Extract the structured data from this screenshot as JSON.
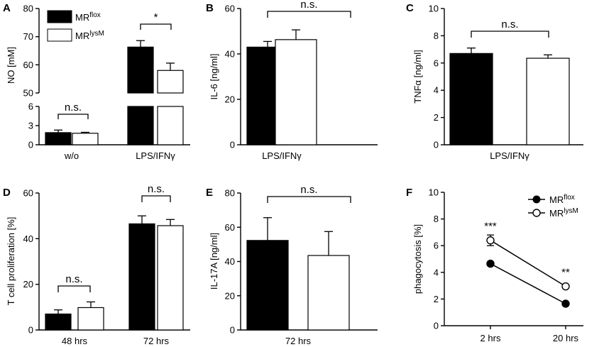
{
  "legend": {
    "flox_base": "MR",
    "flox_sup": "flox",
    "lysm_base": "MR",
    "lysm_sup": "lysM"
  },
  "colors": {
    "flox": "#000000",
    "lysm": "#ffffff"
  },
  "chart_data": [
    {
      "panel": "A",
      "type": "bar",
      "broken_axis": true,
      "ylabel": "NO [mM]",
      "ylim_lower": [
        0,
        6
      ],
      "ylim_upper": [
        50,
        80
      ],
      "yticks_lower": [
        0,
        3,
        6
      ],
      "yticks_upper": [
        50,
        60,
        70,
        80
      ],
      "categories": [
        "w/o",
        "LPS/IFNγ"
      ],
      "series": [
        {
          "name": "MRflox",
          "values": [
            1.9,
            66.3
          ],
          "errors": [
            0.4,
            2.3
          ]
        },
        {
          "name": "MRlysM",
          "values": [
            1.8,
            58.0
          ],
          "errors": [
            0.15,
            2.6
          ]
        }
      ],
      "significance": [
        "n.s.",
        "*"
      ],
      "legend_position": "top-left"
    },
    {
      "panel": "B",
      "type": "bar",
      "ylabel": "IL-6 [ng/ml]",
      "ylim": [
        0,
        60
      ],
      "yticks": [
        0,
        20,
        40,
        60
      ],
      "categories": [
        "LPS/IFNγ"
      ],
      "series": [
        {
          "name": "MRflox",
          "values": [
            43.0
          ],
          "errors": [
            2.5
          ]
        },
        {
          "name": "MRlysM",
          "values": [
            46.3
          ],
          "errors": [
            4.3
          ]
        }
      ],
      "significance": [
        "n.s."
      ]
    },
    {
      "panel": "C",
      "type": "bar",
      "ylabel": "TNFα [ng/ml]",
      "ylim": [
        0,
        10
      ],
      "yticks": [
        0,
        2,
        4,
        6,
        8,
        10
      ],
      "categories": [
        "LPS/IFNγ"
      ],
      "series": [
        {
          "name": "MRflox",
          "values": [
            6.7
          ],
          "errors": [
            0.4
          ]
        },
        {
          "name": "MRlysM",
          "values": [
            6.35
          ],
          "errors": [
            0.25
          ]
        }
      ],
      "significance": [
        "n.s."
      ]
    },
    {
      "panel": "D",
      "type": "bar",
      "ylabel": "T cell proliferation [%]",
      "ylim": [
        0,
        60
      ],
      "yticks": [
        0,
        20,
        40,
        60
      ],
      "categories": [
        "48 hrs",
        "72 hrs"
      ],
      "series": [
        {
          "name": "MRflox",
          "values": [
            7.0,
            46.5
          ],
          "errors": [
            1.8,
            3.5
          ]
        },
        {
          "name": "MRlysM",
          "values": [
            9.8,
            45.7
          ],
          "errors": [
            2.5,
            2.7
          ]
        }
      ],
      "significance": [
        "n.s.",
        "n.s."
      ]
    },
    {
      "panel": "E",
      "type": "bar",
      "ylabel": "IL-17A [ng/ml]",
      "ylim": [
        0,
        80
      ],
      "yticks": [
        0,
        20,
        40,
        60,
        80
      ],
      "categories": [
        "72 hrs"
      ],
      "series": [
        {
          "name": "MRflox",
          "values": [
            52.3
          ],
          "errors": [
            13.3
          ]
        },
        {
          "name": "MRlysM",
          "values": [
            43.5
          ],
          "errors": [
            14.0
          ]
        }
      ],
      "significance": [
        "n.s."
      ]
    },
    {
      "panel": "F",
      "type": "line",
      "ylabel": "phagocytosis [%]",
      "ylim": [
        0,
        10
      ],
      "yticks": [
        0,
        2,
        4,
        6,
        8,
        10
      ],
      "categories": [
        "2 hrs",
        "20 hrs"
      ],
      "series": [
        {
          "name": "MRflox",
          "values": [
            4.65,
            1.65
          ],
          "errors": [
            0.1,
            0.1
          ],
          "marker": "filled-circle"
        },
        {
          "name": "MRlysM",
          "values": [
            6.4,
            2.95
          ],
          "errors": [
            0.4,
            0.25
          ],
          "marker": "open-circle"
        }
      ],
      "significance": [
        "***",
        "**"
      ],
      "legend_position": "top-right"
    }
  ]
}
